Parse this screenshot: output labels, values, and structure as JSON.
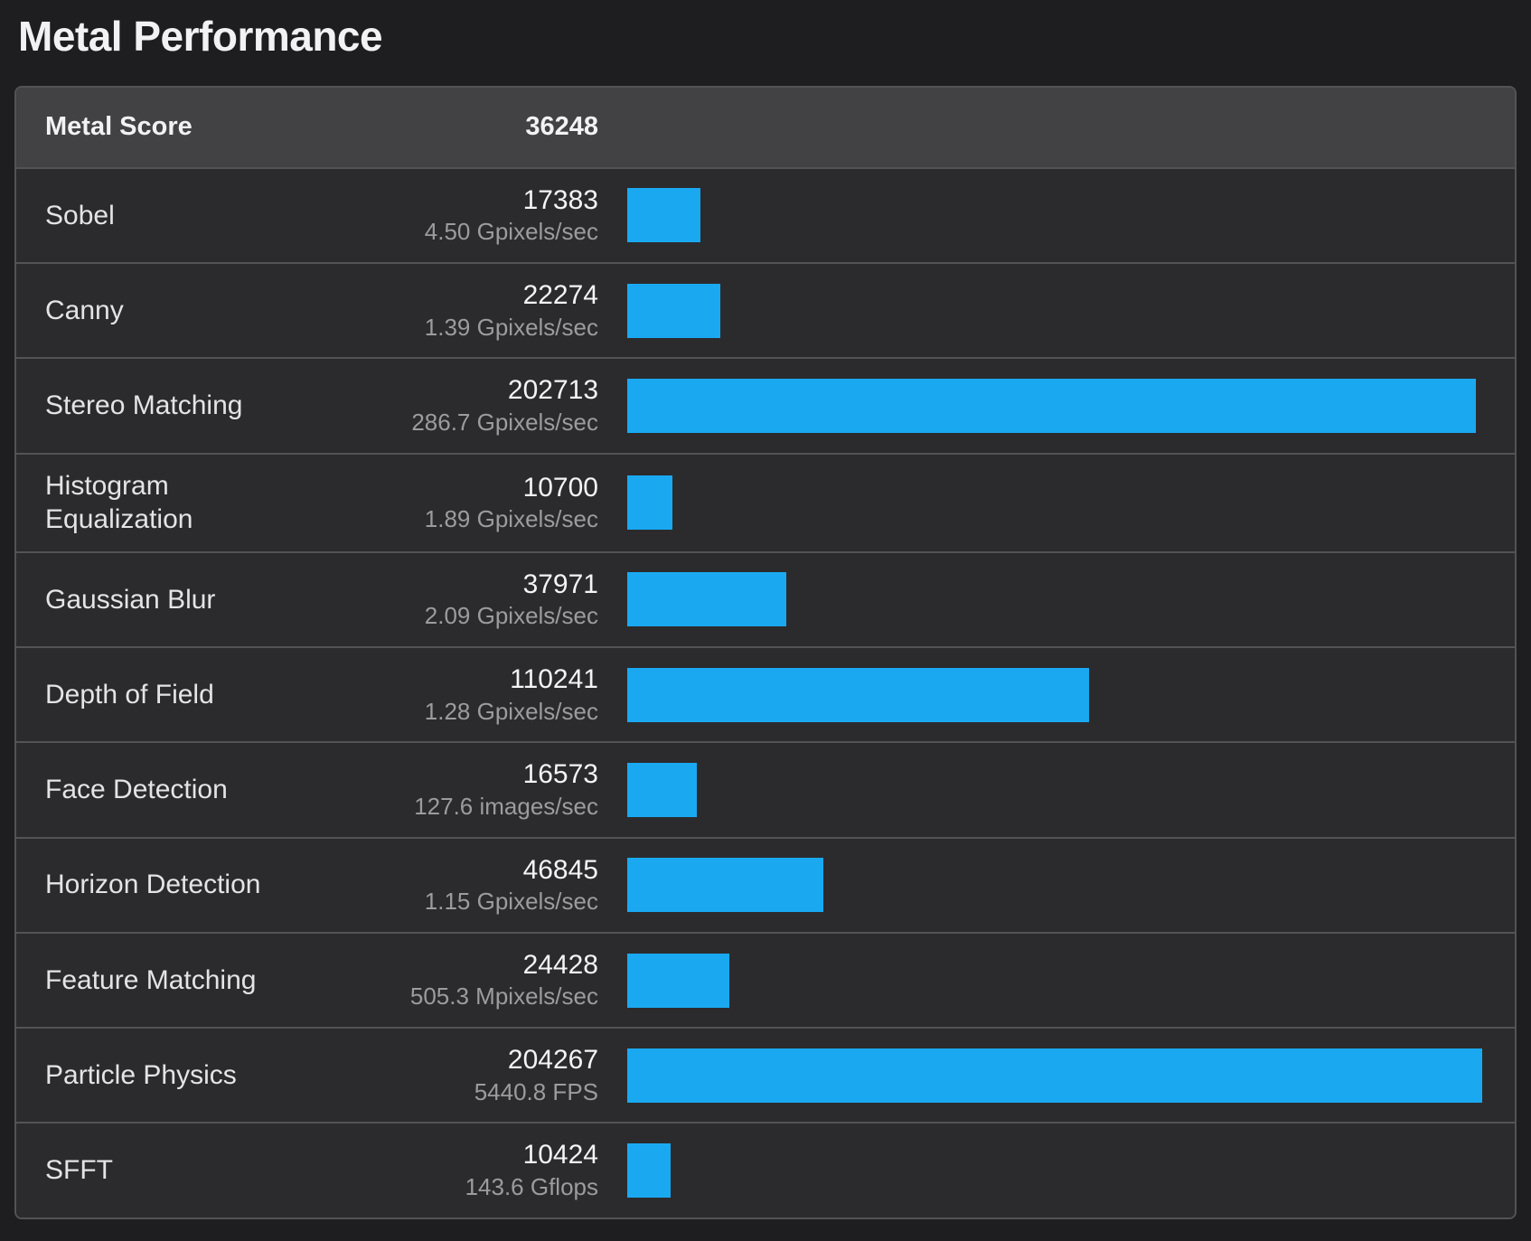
{
  "page": {
    "title": "Metal Performance"
  },
  "header": {
    "label": "Metal Score",
    "score": "36248"
  },
  "colors": {
    "accent": "#1aa9f1",
    "page_background": "#1e1e20",
    "row_background": "#2b2b2d",
    "header_background": "#424244",
    "divider": "#535355"
  },
  "rows": [
    {
      "name": "Sobel",
      "score": "17383",
      "rate": "4.50 Gpixels/sec"
    },
    {
      "name": "Canny",
      "score": "22274",
      "rate": "1.39 Gpixels/sec"
    },
    {
      "name": "Stereo Matching",
      "score": "202713",
      "rate": "286.7 Gpixels/sec"
    },
    {
      "name": "Histogram Equalization",
      "score": "10700",
      "rate": "1.89 Gpixels/sec"
    },
    {
      "name": "Gaussian Blur",
      "score": "37971",
      "rate": "2.09 Gpixels/sec"
    },
    {
      "name": "Depth of Field",
      "score": "110241",
      "rate": "1.28 Gpixels/sec"
    },
    {
      "name": "Face Detection",
      "score": "16573",
      "rate": "127.6 images/sec"
    },
    {
      "name": "Horizon Detection",
      "score": "46845",
      "rate": "1.15 Gpixels/sec"
    },
    {
      "name": "Feature Matching",
      "score": "24428",
      "rate": "505.3 Mpixels/sec"
    },
    {
      "name": "Particle Physics",
      "score": "204267",
      "rate": "5440.8 FPS"
    },
    {
      "name": "SFFT",
      "score": "10424",
      "rate": "143.6 Gflops"
    }
  ]
}
